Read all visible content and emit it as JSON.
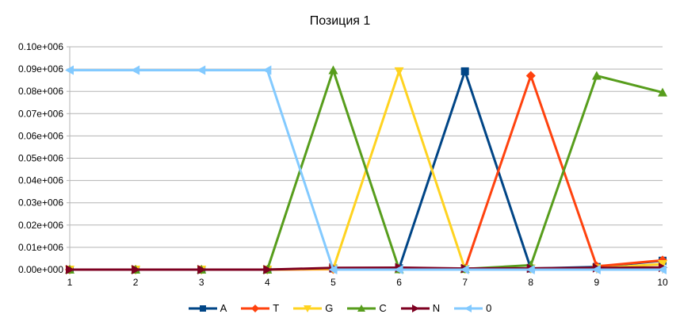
{
  "chart_data": {
    "type": "line",
    "title": "Позиция 1",
    "xlabel": "",
    "ylabel": "",
    "x": [
      1,
      2,
      3,
      4,
      5,
      6,
      7,
      8,
      9,
      10
    ],
    "x_tick_labels": [
      "1",
      "2",
      "3",
      "4",
      "5",
      "6",
      "7",
      "8",
      "9",
      "10"
    ],
    "ylim": [
      0,
      100000
    ],
    "y_ticks": [
      0,
      10000,
      20000,
      30000,
      40000,
      50000,
      60000,
      70000,
      80000,
      90000,
      100000
    ],
    "y_tick_labels": [
      "0.00e+000",
      "0.01e+006",
      "0.02e+006",
      "0.03e+006",
      "0.04e+006",
      "0.05e+006",
      "0.06e+006",
      "0.07e+006",
      "0.08e+006",
      "0.09e+006",
      "0.10e+006"
    ],
    "grid": "horizontal",
    "legend_position": "bottom",
    "series": [
      {
        "name": "A",
        "color": "#004586",
        "marker": "square",
        "values": [
          0,
          0,
          0,
          0,
          500,
          600,
          89000,
          500,
          1200,
          4000
        ]
      },
      {
        "name": "T",
        "color": "#ff420e",
        "marker": "diamond",
        "values": [
          0,
          0,
          0,
          0,
          200,
          300,
          400,
          87000,
          1500,
          4200
        ]
      },
      {
        "name": "G",
        "color": "#ffd320",
        "marker": "triangle-down",
        "values": [
          0,
          0,
          0,
          0,
          300,
          89000,
          300,
          500,
          600,
          2500
        ]
      },
      {
        "name": "C",
        "color": "#579d1c",
        "marker": "triangle-up",
        "values": [
          0,
          0,
          0,
          0,
          89500,
          200,
          300,
          2000,
          87000,
          79500
        ]
      },
      {
        "name": "N",
        "color": "#7e0021",
        "marker": "triangle-right",
        "values": [
          0,
          0,
          0,
          0,
          800,
          900,
          500,
          600,
          800,
          1000
        ]
      },
      {
        "name": "0",
        "color": "#83caff",
        "marker": "triangle-left",
        "values": [
          89500,
          89500,
          89500,
          89500,
          0,
          0,
          0,
          0,
          0,
          0
        ]
      }
    ]
  }
}
